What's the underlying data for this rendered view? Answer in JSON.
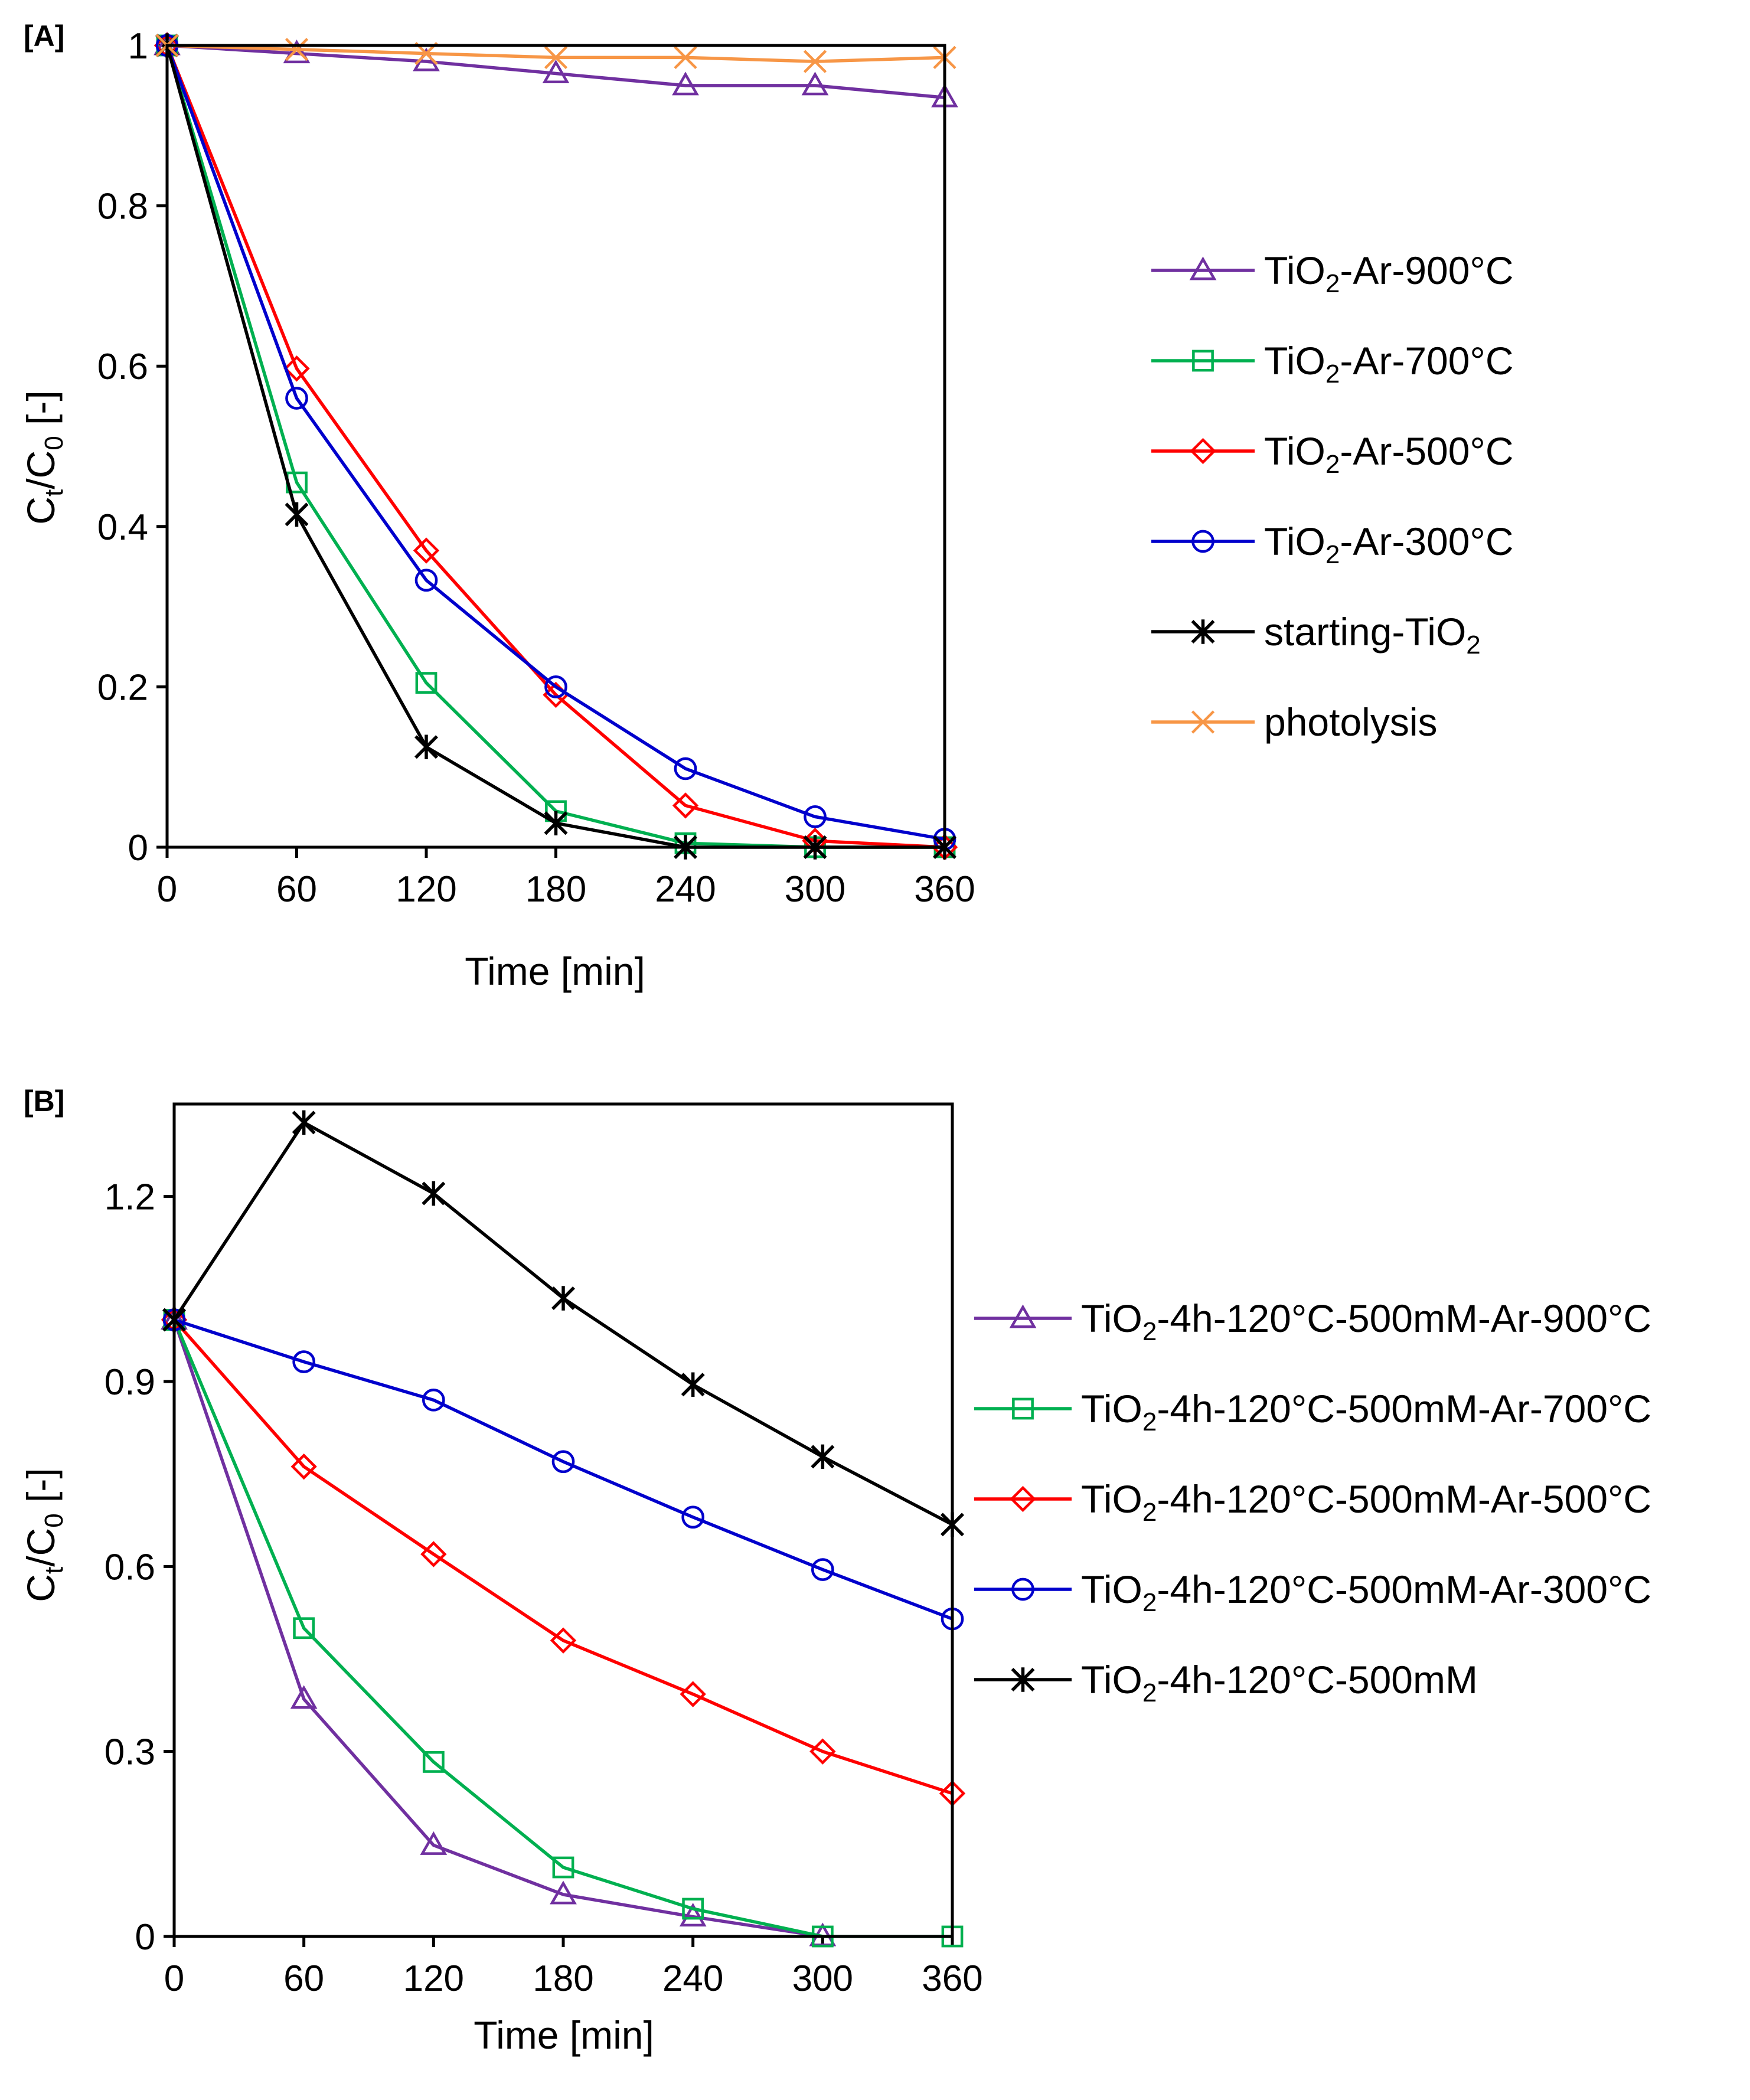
{
  "chart_data": [
    {
      "type": "line",
      "panel_label": "[A]",
      "xlabel": "Time [min]",
      "ylabel_main": "C",
      "ylabel_sub1": "t",
      "ylabel_mid": "/C",
      "ylabel_sub2": "0",
      "ylabel_tail": " [-]",
      "x": [
        0,
        60,
        120,
        180,
        240,
        300,
        360
      ],
      "xticks": [
        "0",
        "60",
        "120",
        "180",
        "240",
        "300",
        "360"
      ],
      "xlim": [
        0,
        360
      ],
      "ylim": [
        0,
        1
      ],
      "yticks": [
        0,
        0.2,
        0.4,
        0.6,
        0.8,
        1
      ],
      "ytick_labels": [
        "0",
        "0.2",
        "0.4",
        "0.6",
        "0.8",
        "1"
      ],
      "grid": false,
      "legend_position": "right",
      "series": [
        {
          "name": "TiO2-Ar-900°C",
          "label_main": "TiO",
          "label_sub": "2",
          "label_rest": "-Ar-900°C",
          "color": "#7030A0",
          "marker": "triangle",
          "values": [
            1.0,
            0.99,
            0.98,
            0.965,
            0.95,
            0.95,
            0.935
          ]
        },
        {
          "name": "TiO2-Ar-700°C",
          "label_main": "TiO",
          "label_sub": "2",
          "label_rest": "-Ar-700°C",
          "color": "#00B050",
          "marker": "square",
          "values": [
            1.0,
            0.455,
            0.205,
            0.045,
            0.005,
            0.0,
            0.0
          ]
        },
        {
          "name": "TiO2-Ar-500°C",
          "label_main": "TiO",
          "label_sub": "2",
          "label_rest": "-Ar-500°C",
          "color": "#FF0000",
          "marker": "diamond",
          "values": [
            1.0,
            0.597,
            0.37,
            0.19,
            0.052,
            0.008,
            0.0
          ]
        },
        {
          "name": "TiO2-Ar-300°C",
          "label_main": "TiO",
          "label_sub": "2",
          "label_rest": "-Ar-300°C",
          "color": "#0000CC",
          "marker": "circle",
          "values": [
            1.0,
            0.56,
            0.333,
            0.2,
            0.098,
            0.038,
            0.01
          ]
        },
        {
          "name": "starting-TiO2",
          "label_main": "starting-TiO",
          "label_sub": "2",
          "label_rest": "",
          "color": "#000000",
          "marker": "star",
          "values": [
            1.0,
            0.415,
            0.125,
            0.03,
            0.0,
            0.0,
            0.0
          ]
        },
        {
          "name": "photolysis",
          "label_main": "photolysis",
          "label_sub": "",
          "label_rest": "",
          "color": "#F79646",
          "marker": "x",
          "values": [
            1.0,
            0.995,
            0.99,
            0.985,
            0.985,
            0.98,
            0.985
          ]
        }
      ]
    },
    {
      "type": "line",
      "panel_label": "[B]",
      "xlabel": "Time [min]",
      "ylabel_main": "C",
      "ylabel_sub1": "t",
      "ylabel_mid": "/C",
      "ylabel_sub2": "0",
      "ylabel_tail": " [-]",
      "x": [
        0,
        60,
        120,
        180,
        240,
        300,
        360
      ],
      "xticks": [
        "0",
        "60",
        "120",
        "180",
        "240",
        "300",
        "360"
      ],
      "xlim": [
        0,
        360
      ],
      "ylim": [
        0,
        1.35
      ],
      "yticks": [
        0,
        0.3,
        0.6,
        0.9,
        1.2
      ],
      "ytick_labels": [
        "0",
        "0.3",
        "0.6",
        "0.9",
        "1.2"
      ],
      "grid": false,
      "legend_position": "right",
      "series": [
        {
          "name": "TiO2-4h-120°C-500mM-Ar-900°C",
          "label_main": "TiO",
          "label_sub": "2",
          "label_rest": "-4h-120°C-500mM-Ar-900°C",
          "color": "#7030A0",
          "marker": "triangle",
          "values": [
            1.0,
            0.385,
            0.148,
            0.068,
            0.032,
            0.0,
            null
          ]
        },
        {
          "name": "TiO2-4h-120°C-500mM-Ar-700°C",
          "label_main": "TiO",
          "label_sub": "2",
          "label_rest": "-4h-120°C-500mM-Ar-700°C",
          "color": "#00B050",
          "marker": "square",
          "values": [
            1.0,
            0.5,
            0.283,
            0.112,
            0.045,
            0.0,
            0.0
          ]
        },
        {
          "name": "TiO2-4h-120°C-500mM-Ar-500°C",
          "label_main": "TiO",
          "label_sub": "2",
          "label_rest": "-4h-120°C-500mM-Ar-500°C",
          "color": "#FF0000",
          "marker": "diamond",
          "values": [
            1.0,
            0.762,
            0.62,
            0.48,
            0.393,
            0.3,
            0.232
          ]
        },
        {
          "name": "TiO2-4h-120°C-500mM-Ar-300°C",
          "label_main": "TiO",
          "label_sub": "2",
          "label_rest": "-4h-120°C-500mM-Ar-300°C",
          "color": "#0000CC",
          "marker": "circle",
          "values": [
            1.0,
            0.932,
            0.87,
            0.77,
            0.68,
            0.595,
            0.515
          ]
        },
        {
          "name": "TiO2-4h-120°C-500mM",
          "label_main": "TiO",
          "label_sub": "2",
          "label_rest": "-4h-120°C-500mM",
          "color": "#000000",
          "marker": "star",
          "values": [
            1.0,
            1.32,
            1.205,
            1.035,
            0.895,
            0.778,
            0.668
          ]
        }
      ]
    }
  ]
}
